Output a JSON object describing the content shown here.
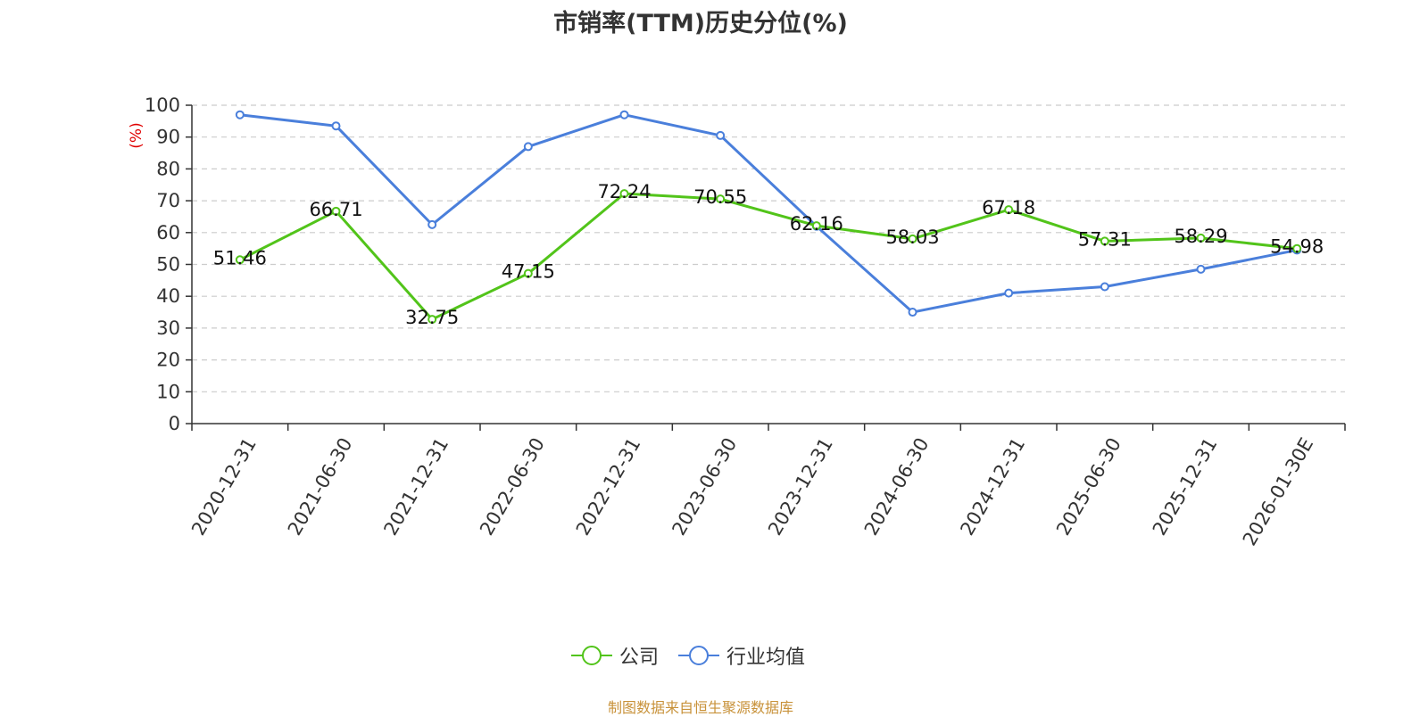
{
  "title": "市销率(TTM)历史分位(%)",
  "source": "制图数据来自恒生聚源数据库",
  "colors": {
    "company": "#52c41a",
    "industry": "#4a7fdb",
    "ylabel": "#e00000",
    "grid": "#cccccc",
    "axis": "#333333"
  },
  "chart_data": {
    "type": "line",
    "title": "市销率(TTM)历史分位(%)",
    "xlabel": "",
    "ylabel": "(%)",
    "ylim": [
      0,
      100
    ],
    "yticks": [
      0,
      10,
      20,
      30,
      40,
      50,
      60,
      70,
      80,
      90,
      100
    ],
    "grid": true,
    "legend_position": "bottom-center",
    "categories": [
      "2020-12-31",
      "2021-06-30",
      "2021-12-31",
      "2022-06-30",
      "2022-12-31",
      "2023-06-30",
      "2023-12-31",
      "2024-06-30",
      "2024-12-31",
      "2025-06-30",
      "2025-12-31",
      "2026-01-30E"
    ],
    "series": [
      {
        "name": "公司",
        "color": "#52c41a",
        "values": [
          51.46,
          66.71,
          32.75,
          47.15,
          72.24,
          70.55,
          62.16,
          58.03,
          67.18,
          57.31,
          58.29,
          54.98
        ],
        "labels": [
          "51.46",
          "66.71",
          "32.75",
          "47.15",
          "72.24",
          "70.55",
          "62.16",
          "58.03",
          "67.18",
          "57.31",
          "58.29",
          "54.98"
        ]
      },
      {
        "name": "行业均值",
        "color": "#4a7fdb",
        "values": [
          97,
          93.5,
          62.5,
          87,
          97,
          90.5,
          62,
          35,
          41,
          43,
          48.5,
          54.5
        ]
      }
    ]
  }
}
